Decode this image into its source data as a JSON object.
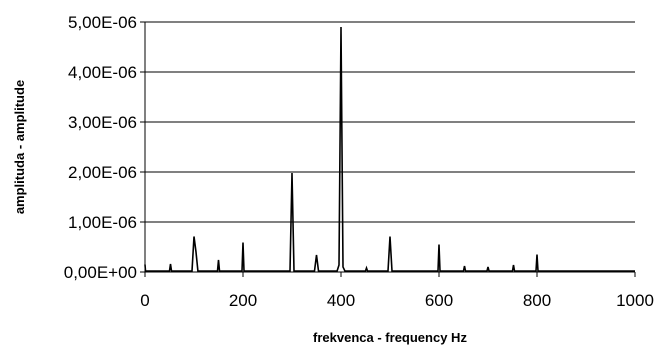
{
  "chart_data": {
    "type": "line",
    "title": "",
    "xlabel": "frekvenca - frequency  Hz",
    "ylabel": "amplituda - amplitude",
    "xlim": [
      0,
      1000
    ],
    "ylim": [
      0,
      5e-06
    ],
    "x_ticks": [
      0,
      200,
      400,
      600,
      800,
      1000
    ],
    "x_tick_labels": [
      "0",
      "200",
      "400",
      "600",
      "800",
      "1000"
    ],
    "y_ticks": [
      0,
      1e-06,
      2e-06,
      3e-06,
      4e-06,
      5e-06
    ],
    "y_tick_labels": [
      "0,00E+00",
      "1,00E-06",
      "2,00E-06",
      "3,00E-06",
      "4,00E-06",
      "5,00E-06"
    ],
    "grid": "horizontal",
    "legend": "none",
    "series_color": "#000000",
    "series": [
      {
        "x": [
          0,
          1,
          50,
          52,
          54,
          96,
          100,
          104,
          108,
          148,
          150,
          152,
          198,
          200,
          202,
          296,
          300,
          304,
          346,
          350,
          354,
          392,
          396,
          400,
          404,
          408,
          450,
          452,
          454,
          496,
          500,
          504,
          598,
          600,
          602,
          650,
          652,
          654,
          698,
          700,
          702,
          750,
          752,
          754,
          798,
          800,
          802,
          1000
        ],
        "y": [
          1.5e-07,
          2e-08,
          2e-08,
          1.6e-07,
          2e-08,
          2e-08,
          7.1e-07,
          4e-07,
          2e-08,
          2e-08,
          2.4e-07,
          2e-08,
          2e-08,
          5.9e-07,
          2e-08,
          2e-08,
          1.98e-06,
          2e-08,
          2e-08,
          3.4e-07,
          2e-08,
          2e-08,
          1.4e-07,
          4.9e-06,
          1e-07,
          2e-08,
          2e-08,
          8e-08,
          2e-08,
          2e-08,
          7.1e-07,
          2e-08,
          2e-08,
          5.5e-07,
          2e-08,
          2e-08,
          1.2e-07,
          2e-08,
          2e-08,
          1e-07,
          2e-08,
          2e-08,
          1.4e-07,
          2e-08,
          2e-08,
          3.5e-07,
          2e-08,
          2e-08
        ]
      }
    ]
  }
}
